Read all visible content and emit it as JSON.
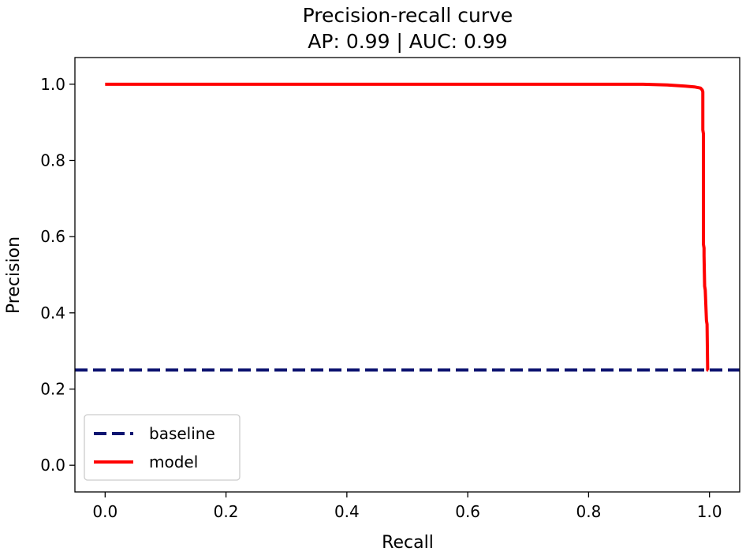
{
  "chart_data": {
    "type": "line",
    "title": "Precision-recall curve",
    "subtitle": "AP: 0.99 | AUC: 0.99",
    "xlabel": "Recall",
    "ylabel": "Precision",
    "xlim": [
      -0.05,
      1.05
    ],
    "ylim": [
      -0.07,
      1.07
    ],
    "xticks": [
      0.0,
      0.2,
      0.4,
      0.6,
      0.8,
      1.0
    ],
    "xtick_labels": [
      "0.0",
      "0.2",
      "0.4",
      "0.6",
      "0.8",
      "1.0"
    ],
    "yticks": [
      0.0,
      0.2,
      0.4,
      0.6,
      0.8,
      1.0
    ],
    "ytick_labels": [
      "0.0",
      "0.2",
      "0.4",
      "0.6",
      "0.8",
      "1.0"
    ],
    "grid": false,
    "legend_position": "lower-left",
    "series": [
      {
        "name": "baseline",
        "style": "dashed",
        "color": "#0d1470",
        "x": [
          -0.05,
          1.05
        ],
        "y": [
          0.25,
          0.25
        ]
      },
      {
        "name": "model",
        "style": "solid",
        "color": "#ff0000",
        "x": [
          0.0,
          0.5,
          0.89,
          0.93,
          0.96,
          0.975,
          0.985,
          0.988,
          0.989,
          0.989,
          0.99,
          0.99,
          0.991,
          0.991,
          0.992,
          0.993,
          0.995,
          0.996,
          0.997,
          0.998
        ],
        "y": [
          1.0,
          1.0,
          1.0,
          0.998,
          0.995,
          0.993,
          0.99,
          0.985,
          0.98,
          0.88,
          0.87,
          0.58,
          0.57,
          0.55,
          0.47,
          0.46,
          0.38,
          0.37,
          0.25,
          0.25
        ]
      }
    ]
  }
}
